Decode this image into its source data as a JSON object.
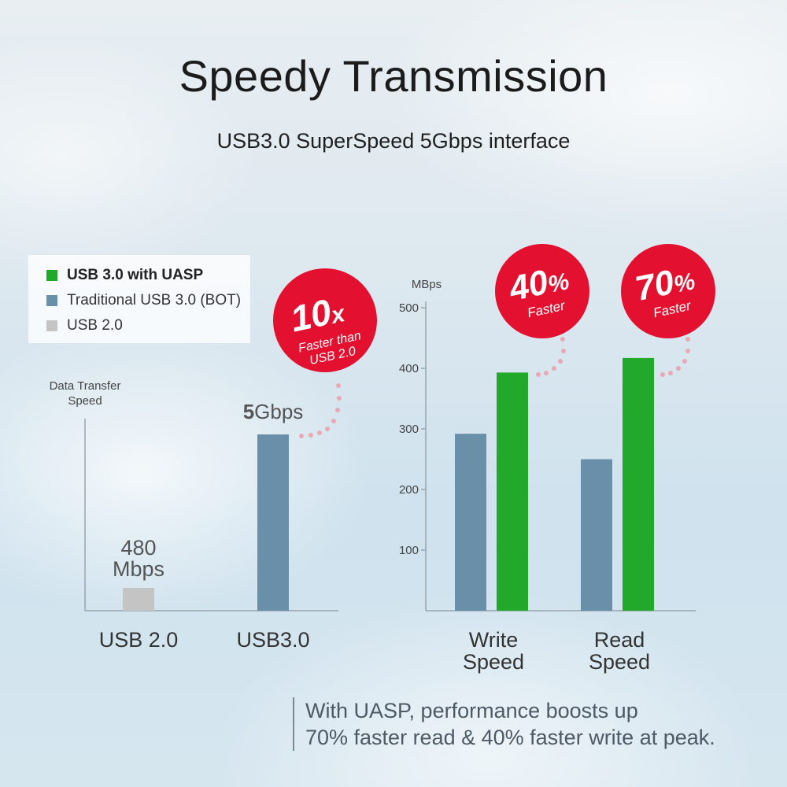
{
  "title": "Speedy Transmission",
  "subtitle": "USB3.0 SuperSpeed 5Gbps interface",
  "legend": [
    {
      "label": "USB 3.0 with UASP",
      "color": "#22a82a",
      "bold": true
    },
    {
      "label": "Traditional USB 3.0 (BOT)",
      "color": "#6a8fa8",
      "bold": false
    },
    {
      "label": "USB 2.0",
      "color": "#c4c4c4",
      "bold": false
    }
  ],
  "chart_data": [
    {
      "type": "bar",
      "ylabel": "Data Transfer Speed",
      "categories": [
        "USB 2.0",
        "USB3.0"
      ],
      "values": [
        480,
        5000
      ],
      "colors": [
        "#c4c4c4",
        "#6a8fa8"
      ],
      "value_labels": [
        "480 Mbps",
        "5Gbps"
      ],
      "value_label_bold_part": "5",
      "value_label_rest": "Gbps",
      "value_label_480": "480",
      "value_label_mbps": "Mbps",
      "badge": {
        "big": "10",
        "suffix": "x",
        "line1": "Faster than",
        "line2": "USB 2.0"
      }
    },
    {
      "type": "bar",
      "ylabel": "MBps",
      "categories": [
        "Write Speed",
        "Read Speed"
      ],
      "category_lines": [
        [
          "Write",
          "Speed"
        ],
        [
          "Read",
          "Speed"
        ]
      ],
      "ylim": [
        0,
        500
      ],
      "yticks": [
        100,
        200,
        300,
        400,
        500
      ],
      "series": [
        {
          "name": "Traditional USB 3.0 (BOT)",
          "color": "#6a8fa8",
          "values": [
            292,
            250
          ]
        },
        {
          "name": "USB 3.0 with UASP",
          "color": "#22a82a",
          "values": [
            393,
            417
          ]
        }
      ],
      "badges": [
        {
          "big": "40",
          "suffix": "%",
          "line": "Faster"
        },
        {
          "big": "70",
          "suffix": "%",
          "line": "Faster"
        }
      ]
    }
  ],
  "note": {
    "line1": "With UASP, performance boosts up",
    "line2": "70% faster read & 40% faster write at peak."
  },
  "badge_color": "#e4102f"
}
